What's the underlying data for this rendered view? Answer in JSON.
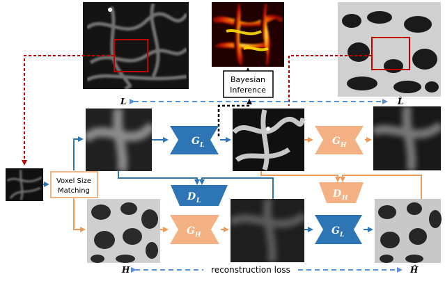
{
  "labels": {
    "bayesian_line1": "Bayesian",
    "bayesian_line2": "Inference",
    "voxel_line1": "Voxel Size",
    "voxel_line2": "Matching",
    "reconstruction_loss": "reconstruction loss",
    "L": "L",
    "L_hat": "L̂",
    "H": "H",
    "H_hat": "Ĥ"
  },
  "blocks": {
    "gl_top": "G",
    "gl_top_sub": "L",
    "gh_top": "G",
    "gh_top_sub": "H",
    "dl": "D",
    "dl_sub": "L",
    "dh": "D",
    "dh_sub": "H",
    "gh_bottom": "G",
    "gh_bottom_sub": "H",
    "gl_bottom": "G",
    "gl_bottom_sub": "L"
  },
  "colors": {
    "blue": "#2e75b6",
    "orange": "#f4b183",
    "orange_line": "#ed9a58",
    "red_dash": "#c00000",
    "dash_blue": "#5b8fd6",
    "black": "#000000"
  }
}
